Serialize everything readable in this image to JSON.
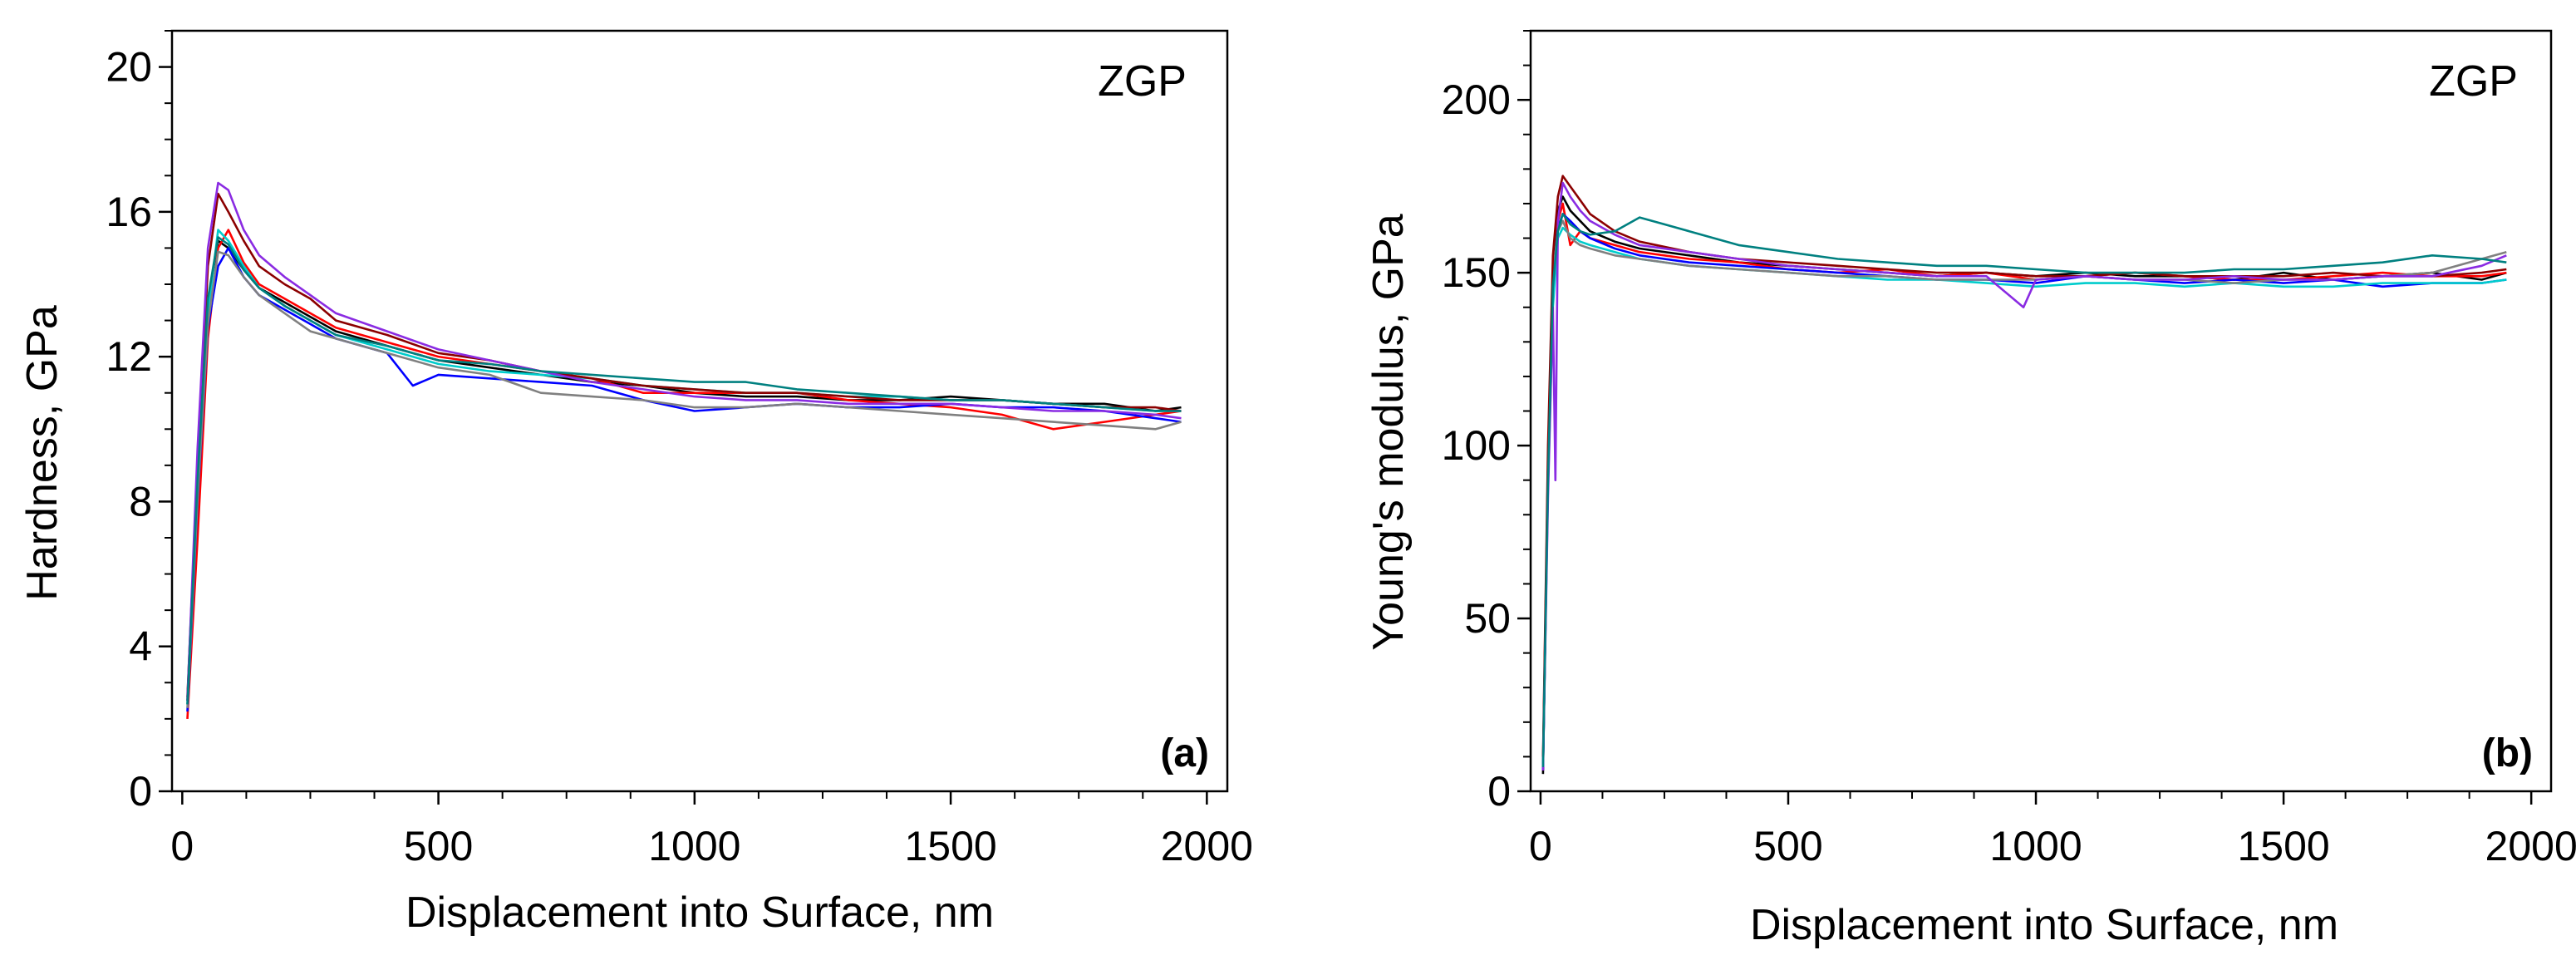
{
  "chart_data": [
    {
      "type": "line",
      "panel_label": "(a)",
      "annotation": "ZGP",
      "xlabel": "Displacement into Surface, nm",
      "ylabel": "Hardness, GPa",
      "xlim": [
        -20,
        2040
      ],
      "ylim": [
        0,
        21
      ],
      "xticks": [
        "0",
        "500",
        "1000",
        "1500",
        "2000"
      ],
      "yticks": [
        "0",
        "4",
        "8",
        "12",
        "16",
        "20"
      ],
      "grid": false,
      "legend": "none",
      "series": [
        {
          "color": "#000000",
          "x": [
            10,
            30,
            50,
            70,
            90,
            120,
            150,
            200,
            250,
            300,
            400,
            500,
            600,
            700,
            800,
            900,
            1000,
            1100,
            1200,
            1300,
            1400,
            1500,
            1600,
            1700,
            1800,
            1900,
            1950
          ],
          "y": [
            2.5,
            8.5,
            13.5,
            15.2,
            15.0,
            14.4,
            13.9,
            13.5,
            13.1,
            12.7,
            12.3,
            11.9,
            11.7,
            11.5,
            11.3,
            11.2,
            11.0,
            10.9,
            10.9,
            10.8,
            10.8,
            10.9,
            10.8,
            10.7,
            10.7,
            10.5,
            10.6
          ]
        },
        {
          "color": "#ff0000",
          "x": [
            10,
            30,
            50,
            70,
            90,
            120,
            150,
            200,
            250,
            300,
            400,
            500,
            600,
            700,
            800,
            900,
            1000,
            1100,
            1200,
            1300,
            1400,
            1500,
            1600,
            1700,
            1800,
            1900,
            1950
          ],
          "y": [
            2.0,
            7.0,
            12.5,
            15.0,
            15.5,
            14.6,
            14.0,
            13.6,
            13.2,
            12.8,
            12.4,
            12.0,
            11.8,
            11.6,
            11.4,
            11.0,
            11.0,
            11.0,
            11.0,
            10.8,
            10.7,
            10.6,
            10.4,
            10.0,
            10.2,
            10.4,
            10.5
          ]
        },
        {
          "color": "#0000ff",
          "x": [
            10,
            30,
            50,
            70,
            90,
            120,
            150,
            200,
            250,
            300,
            400,
            450,
            500,
            600,
            700,
            800,
            900,
            1000,
            1100,
            1200,
            1300,
            1400,
            1500,
            1600,
            1700,
            1800,
            1900,
            1950
          ],
          "y": [
            2.2,
            8.0,
            12.8,
            14.5,
            15.0,
            14.2,
            13.7,
            13.3,
            12.9,
            12.5,
            12.1,
            11.2,
            11.5,
            11.4,
            11.3,
            11.2,
            10.8,
            10.5,
            10.6,
            10.7,
            10.6,
            10.6,
            10.7,
            10.6,
            10.6,
            10.5,
            10.3,
            10.2
          ]
        },
        {
          "color": "#00cccc",
          "x": [
            10,
            30,
            50,
            70,
            90,
            120,
            150,
            200,
            250,
            300,
            400,
            500,
            600,
            700,
            800,
            900,
            1000,
            1100,
            1200,
            1300,
            1400,
            1500,
            1600,
            1700,
            1800,
            1900,
            1950
          ],
          "y": [
            2.4,
            8.3,
            13.2,
            15.5,
            15.2,
            14.5,
            13.9,
            13.4,
            13.0,
            12.6,
            12.2,
            11.8,
            11.6,
            11.5,
            11.4,
            11.2,
            11.1,
            11.0,
            11.0,
            10.9,
            10.9,
            10.8,
            10.8,
            10.7,
            10.6,
            10.5,
            10.5
          ]
        },
        {
          "color": "#808080",
          "x": [
            10,
            30,
            50,
            70,
            90,
            120,
            150,
            200,
            250,
            300,
            400,
            500,
            600,
            700,
            800,
            900,
            1000,
            1100,
            1200,
            1300,
            1400,
            1500,
            1600,
            1700,
            1800,
            1900,
            1950
          ],
          "y": [
            2.3,
            8.1,
            12.9,
            14.9,
            14.8,
            14.2,
            13.7,
            13.2,
            12.7,
            12.5,
            12.1,
            11.7,
            11.5,
            11.0,
            10.9,
            10.8,
            10.6,
            10.6,
            10.7,
            10.6,
            10.5,
            10.4,
            10.3,
            10.2,
            10.1,
            10.0,
            10.2
          ]
        },
        {
          "color": "#8b0000",
          "x": [
            10,
            30,
            50,
            70,
            90,
            120,
            150,
            200,
            250,
            300,
            400,
            500,
            600,
            700,
            800,
            900,
            1000,
            1100,
            1200,
            1300,
            1400,
            1500,
            1600,
            1700,
            1800,
            1900,
            1950
          ],
          "y": [
            2.6,
            9.0,
            14.5,
            16.5,
            16.0,
            15.2,
            14.5,
            14.0,
            13.6,
            13.0,
            12.6,
            12.1,
            11.9,
            11.6,
            11.4,
            11.2,
            11.1,
            11.0,
            11.0,
            10.9,
            10.8,
            10.8,
            10.8,
            10.7,
            10.6,
            10.6,
            10.5
          ]
        },
        {
          "color": "#8a2be2",
          "x": [
            10,
            30,
            50,
            70,
            90,
            120,
            150,
            200,
            250,
            300,
            400,
            500,
            600,
            700,
            800,
            900,
            1000,
            1100,
            1200,
            1300,
            1400,
            1500,
            1600,
            1700,
            1800,
            1900,
            1950
          ],
          "y": [
            2.5,
            9.5,
            15.0,
            16.8,
            16.6,
            15.5,
            14.8,
            14.2,
            13.7,
            13.2,
            12.7,
            12.2,
            11.9,
            11.6,
            11.3,
            11.1,
            10.9,
            10.8,
            10.8,
            10.7,
            10.7,
            10.7,
            10.6,
            10.5,
            10.5,
            10.4,
            10.3
          ]
        },
        {
          "color": "#008080",
          "x": [
            10,
            30,
            50,
            70,
            90,
            120,
            150,
            200,
            250,
            300,
            400,
            500,
            600,
            700,
            800,
            900,
            1000,
            1100,
            1200,
            1300,
            1400,
            1500,
            1600,
            1700,
            1800,
            1900,
            1950
          ],
          "y": [
            2.4,
            8.6,
            13.6,
            15.3,
            15.1,
            14.4,
            13.9,
            13.4,
            13.0,
            12.6,
            12.3,
            11.9,
            11.8,
            11.6,
            11.5,
            11.4,
            11.3,
            11.3,
            11.1,
            11.0,
            10.9,
            10.8,
            10.8,
            10.7,
            10.6,
            10.5,
            10.5
          ]
        }
      ]
    },
    {
      "type": "line",
      "panel_label": "(b)",
      "annotation": "ZGP",
      "xlabel": "Displacement into Surface, nm",
      "ylabel": "Young's modulus, GPa",
      "xlim": [
        -20,
        2040
      ],
      "ylim": [
        0,
        220
      ],
      "xticks": [
        "0",
        "500",
        "1000",
        "1500",
        "2000"
      ],
      "yticks": [
        "0",
        "50",
        "100",
        "150",
        "200"
      ],
      "grid": false,
      "legend": "none",
      "series": [
        {
          "color": "#000000",
          "x": [
            5,
            15,
            25,
            35,
            45,
            60,
            80,
            100,
            150,
            200,
            300,
            400,
            500,
            600,
            700,
            800,
            900,
            1000,
            1100,
            1200,
            1300,
            1400,
            1500,
            1600,
            1700,
            1800,
            1900,
            1950
          ],
          "y": [
            5,
            95,
            150,
            168,
            172,
            168,
            165,
            162,
            159,
            157,
            155,
            153,
            152,
            151,
            150,
            149,
            150,
            149,
            150,
            149,
            149,
            148,
            150,
            148,
            149,
            150,
            148,
            150
          ]
        },
        {
          "color": "#ff0000",
          "x": [
            5,
            15,
            25,
            35,
            45,
            60,
            80,
            100,
            150,
            200,
            300,
            400,
            500,
            600,
            700,
            800,
            900,
            1000,
            1100,
            1200,
            1300,
            1400,
            1500,
            1600,
            1700,
            1800,
            1900,
            1950
          ],
          "y": [
            8,
            90,
            145,
            165,
            170,
            158,
            162,
            160,
            158,
            156,
            154,
            153,
            151,
            150,
            151,
            149,
            150,
            148,
            149,
            150,
            149,
            148,
            148,
            149,
            150,
            149,
            149,
            150
          ]
        },
        {
          "color": "#0000ff",
          "x": [
            5,
            15,
            25,
            35,
            45,
            60,
            80,
            100,
            150,
            200,
            300,
            400,
            500,
            600,
            700,
            800,
            900,
            1000,
            1100,
            1200,
            1300,
            1400,
            1500,
            1600,
            1700,
            1800,
            1900,
            1950
          ],
          "y": [
            6,
            92,
            148,
            163,
            167,
            165,
            162,
            160,
            157,
            155,
            153,
            152,
            151,
            150,
            149,
            148,
            148,
            147,
            149,
            148,
            147,
            148,
            147,
            148,
            146,
            147,
            147,
            148
          ]
        },
        {
          "color": "#00cccc",
          "x": [
            5,
            15,
            25,
            35,
            45,
            60,
            80,
            100,
            150,
            200,
            300,
            400,
            500,
            600,
            700,
            800,
            900,
            1000,
            1100,
            1200,
            1300,
            1400,
            1500,
            1600,
            1700,
            1800,
            1900,
            1950
          ],
          "y": [
            7,
            88,
            140,
            160,
            163,
            161,
            159,
            158,
            156,
            154,
            152,
            151,
            150,
            149,
            148,
            148,
            147,
            146,
            147,
            147,
            146,
            147,
            146,
            146,
            147,
            147,
            147,
            148
          ]
        },
        {
          "color": "#808080",
          "x": [
            5,
            15,
            25,
            35,
            45,
            60,
            80,
            100,
            150,
            200,
            300,
            400,
            500,
            600,
            700,
            800,
            900,
            1000,
            1100,
            1200,
            1300,
            1400,
            1500,
            1600,
            1700,
            1800,
            1900,
            1950
          ],
          "y": [
            9,
            95,
            150,
            162,
            165,
            160,
            158,
            157,
            155,
            154,
            152,
            151,
            150,
            149,
            149,
            148,
            148,
            148,
            149,
            148,
            148,
            147,
            148,
            148,
            149,
            150,
            154,
            156
          ]
        },
        {
          "color": "#8b0000",
          "x": [
            5,
            15,
            25,
            35,
            45,
            60,
            80,
            100,
            150,
            200,
            300,
            400,
            500,
            600,
            700,
            800,
            900,
            1000,
            1100,
            1200,
            1300,
            1400,
            1500,
            1600,
            1700,
            1800,
            1900,
            1950
          ],
          "y": [
            10,
            100,
            155,
            172,
            178,
            175,
            171,
            167,
            162,
            159,
            156,
            154,
            153,
            152,
            151,
            150,
            150,
            149,
            149,
            150,
            149,
            149,
            149,
            150,
            149,
            149,
            150,
            151
          ]
        },
        {
          "color": "#8a2be2",
          "x": [
            5,
            15,
            25,
            30,
            35,
            45,
            60,
            80,
            100,
            150,
            200,
            300,
            400,
            500,
            600,
            700,
            800,
            900,
            975,
            1000,
            1100,
            1200,
            1300,
            1400,
            1500,
            1600,
            1700,
            1800,
            1900,
            1950
          ],
          "y": [
            6,
            85,
            140,
            90,
            165,
            176,
            172,
            168,
            165,
            161,
            158,
            156,
            154,
            152,
            151,
            150,
            149,
            149,
            140,
            148,
            149,
            148,
            148,
            149,
            148,
            148,
            149,
            149,
            152,
            155
          ]
        },
        {
          "color": "#008080",
          "x": [
            5,
            15,
            25,
            35,
            45,
            60,
            80,
            100,
            150,
            200,
            250,
            300,
            400,
            500,
            600,
            700,
            800,
            900,
            1000,
            1100,
            1200,
            1300,
            1400,
            1500,
            1600,
            1700,
            1800,
            1900,
            1950
          ],
          "y": [
            7,
            90,
            146,
            162,
            167,
            164,
            162,
            161,
            162,
            166,
            164,
            162,
            158,
            156,
            154,
            153,
            152,
            152,
            151,
            150,
            150,
            150,
            151,
            151,
            152,
            153,
            155,
            154,
            153
          ]
        }
      ]
    }
  ]
}
